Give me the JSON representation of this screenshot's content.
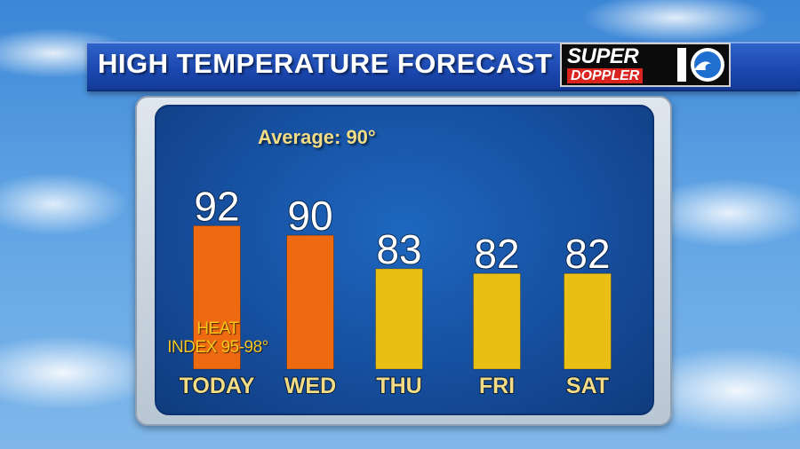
{
  "header": {
    "title": "HIGH TEMPERATURE FORECAST"
  },
  "logo": {
    "super": "SUPER",
    "doppler": "DOPPLER",
    "ten": "10"
  },
  "average": {
    "text": "Average: 90°"
  },
  "annotation": {
    "line1": "HEAT",
    "line2": "INDEX 95-98°"
  },
  "colors": {
    "hot": "#ee6a10",
    "warm": "#e9bf16",
    "label": "#f2dc86"
  },
  "chart_data": {
    "type": "bar",
    "categories": [
      "TODAY",
      "WED",
      "THU",
      "FRI",
      "SAT"
    ],
    "values": [
      92,
      90,
      83,
      82,
      82
    ],
    "bar_colors": [
      "#ee6a10",
      "#ee6a10",
      "#e9bf16",
      "#e9bf16",
      "#e9bf16"
    ],
    "value_labels": [
      "92",
      "90",
      "83",
      "82",
      "82"
    ],
    "title": "HIGH TEMPERATURE FORECAST",
    "xlabel": "",
    "ylabel": "",
    "ylim": [
      62,
      98
    ],
    "grid": false,
    "annotations": [
      "Average: 90°",
      "HEAT INDEX 95-98°"
    ]
  }
}
